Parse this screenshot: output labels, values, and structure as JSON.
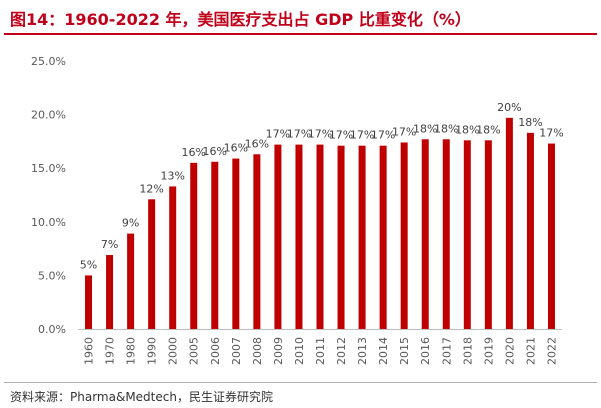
{
  "header": {
    "title": "图14：1960-2022 年，美国医疗支出占 GDP 比重变化（%）"
  },
  "footer": {
    "source": "资料来源：Pharma&Medtech，民生证券研究院"
  },
  "colors": {
    "accent": "#c0001a",
    "bar": "#c00000"
  },
  "chart_data": {
    "type": "bar",
    "title": "1960-2022 年，美国医疗支出占 GDP 比重变化（%）",
    "xlabel": "",
    "ylabel": "",
    "ylim": [
      0,
      25
    ],
    "grid": false,
    "legend": "none",
    "y_ticks": [
      "0.0%",
      "5.0%",
      "10.0%",
      "15.0%",
      "20.0%",
      "25.0%"
    ],
    "categories": [
      "1960",
      "1970",
      "1980",
      "1990",
      "2000",
      "2005",
      "2006",
      "2007",
      "2008",
      "2009",
      "2010",
      "2011",
      "2012",
      "2013",
      "2014",
      "2015",
      "2016",
      "2017",
      "2018",
      "2019",
      "2020",
      "2021",
      "2022"
    ],
    "values": [
      5.0,
      6.9,
      8.9,
      12.1,
      13.3,
      15.5,
      15.6,
      15.9,
      16.3,
      17.2,
      17.2,
      17.2,
      17.1,
      17.1,
      17.1,
      17.4,
      17.7,
      17.7,
      17.6,
      17.6,
      19.7,
      18.3,
      17.3
    ],
    "data_labels": [
      "5%",
      "7%",
      "9%",
      "12%",
      "13%",
      "16%",
      "16%",
      "16%",
      "16%",
      "17%",
      "17%",
      "17%",
      "17%",
      "17%",
      "17%",
      "17%",
      "18%",
      "18%",
      "18%",
      "18%",
      "20%",
      "18%",
      "17%"
    ]
  }
}
